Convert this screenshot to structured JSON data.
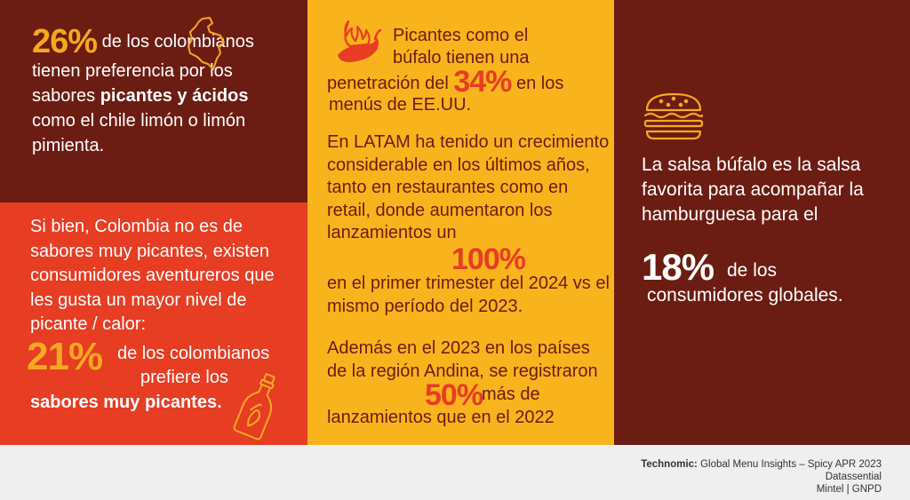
{
  "top_left": {
    "percent": "26%",
    "text_before": " de los colombianos tienen preferencia por los sabores ",
    "bold": "picantes y ácidos",
    "text_after": " como el chile limón o limón pimienta."
  },
  "bottom_left": {
    "intro": "Si bien, Colombia no es de sabores muy picantes, existen consumidores aventureros que les gusta un mayor nivel de picante / calor:",
    "percent": "21%",
    "line1": "de los colombianos",
    "line2": "prefiere los",
    "bold_line": "sabores muy picantes."
  },
  "middle": {
    "block1": {
      "line1": "Picantes como el",
      "line2": "búfalo tienen una",
      "line3_before": "penetración del ",
      "percent": "34%",
      "line3_after": " en los",
      "line4": "menús de EE.UU."
    },
    "block2": {
      "text": "En LATAM ha tenido un crecimiento considerable en los últimos años, tanto en restaurantes como en retail, donde aumentaron los lanzamientos un",
      "percent": "100%",
      "text_after": "en el primer trimester del 2024 vs el mismo período del 2023."
    },
    "block3": {
      "text": "Además en el 2023 en los países de la región Andina, se registraron",
      "percent": "50%",
      "after_percent": "más de",
      "last_line": "lanzamientos que en el 2022"
    }
  },
  "right": {
    "text": "La salsa búfalo es la salsa favorita para acompañar la hamburguesa para el",
    "percent": "18%",
    "line1": "de los",
    "line2": "consumidores globales."
  },
  "footer": {
    "source1_bold": "Technomic:",
    "source1_rest": " Global Menu Insights – Spicy APR 2023",
    "source2": "Datassential",
    "source3": "Mintel | GNPD"
  },
  "icons": {
    "top_left": "colombia-map-icon",
    "bottom_left": "hot-sauce-bottle-icon",
    "middle": "chili-pepper-fire-icon",
    "right": "burger-icon"
  },
  "colors": {
    "maroon": "#6b1d13",
    "red_orange": "#e63d23",
    "mustard": "#f9b31d",
    "orange_highlight": "#f6a820"
  }
}
